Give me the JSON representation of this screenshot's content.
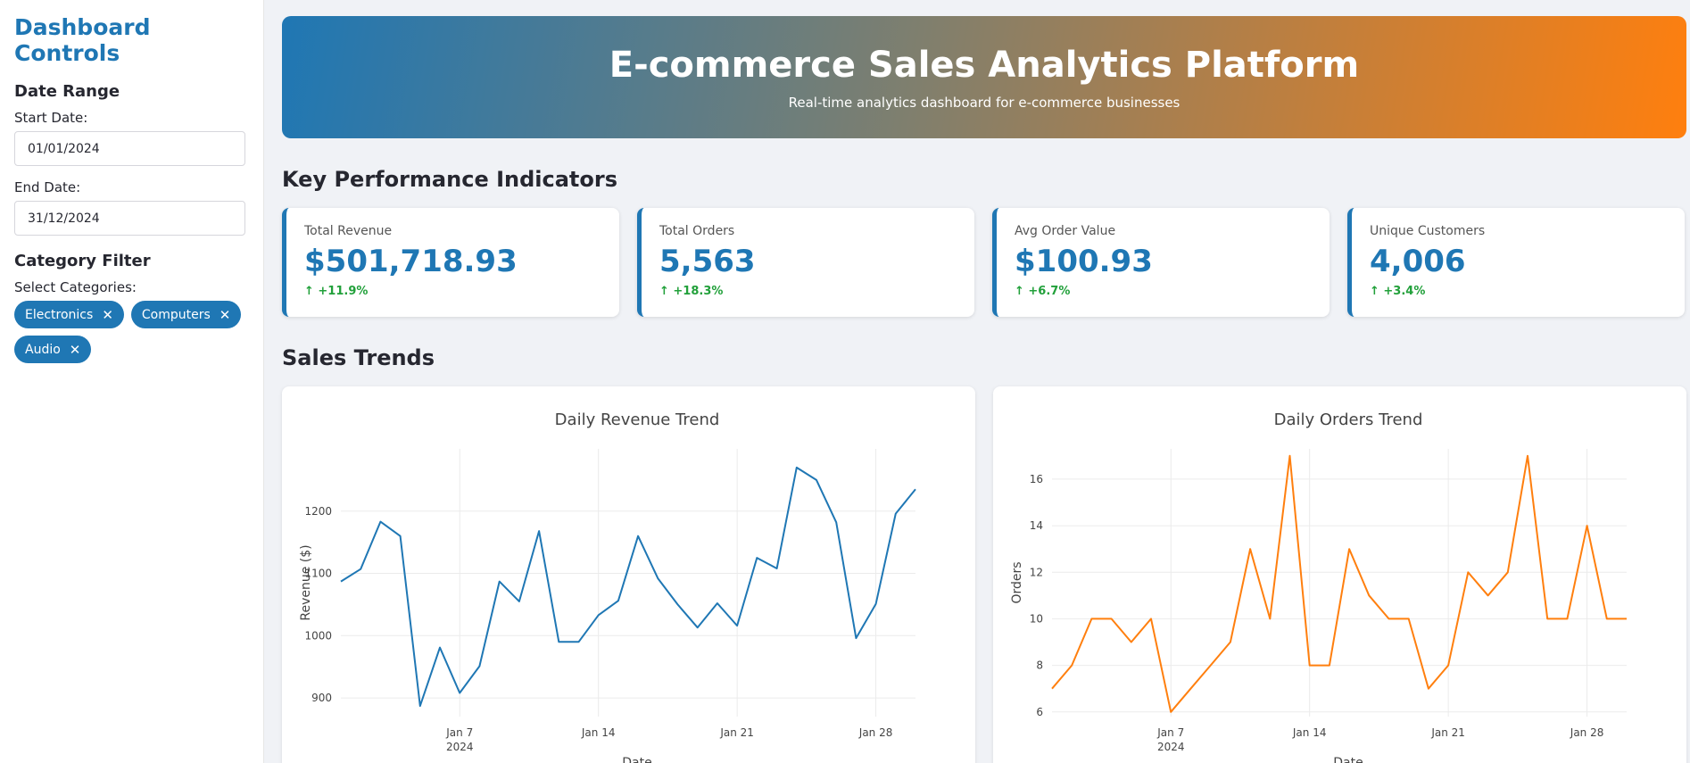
{
  "sidebar": {
    "title": "Dashboard Controls",
    "date_range": {
      "heading": "Date Range",
      "start_label": "Start Date:",
      "start_value": "01/01/2024",
      "end_label": "End Date:",
      "end_value": "31/12/2024"
    },
    "category_filter": {
      "heading": "Category Filter",
      "select_label": "Select Categories:",
      "chips": [
        "Electronics",
        "Computers",
        "Audio"
      ]
    }
  },
  "header": {
    "title": "E-commerce Sales Analytics Platform",
    "subtitle": "Real-time analytics dashboard for e-commerce businesses"
  },
  "kpi_section": {
    "heading": "Key Performance Indicators",
    "cards": [
      {
        "label": "Total Revenue",
        "value": "$501,718.93",
        "delta": "↑ +11.9%"
      },
      {
        "label": "Total Orders",
        "value": "5,563",
        "delta": "↑ +18.3%"
      },
      {
        "label": "Avg Order Value",
        "value": "$100.93",
        "delta": "↑ +6.7%"
      },
      {
        "label": "Unique Customers",
        "value": "4,006",
        "delta": "↑ +3.4%"
      }
    ]
  },
  "trends_section": {
    "heading": "Sales Trends"
  },
  "colors": {
    "accent": "#1f77b4",
    "orange": "#ff7f0e",
    "positive": "#21a03a"
  },
  "chart_data": [
    {
      "type": "line",
      "title": "Daily Revenue Trend",
      "xlabel": "Date",
      "ylabel": "Revenue ($)",
      "x_ticks": [
        "Jan 7",
        "Jan 14",
        "Jan 21",
        "Jan 28"
      ],
      "x_tick_sub": "2024",
      "x_range_days": [
        1,
        30
      ],
      "yticks": [
        900,
        1000,
        1100,
        1200
      ],
      "ylim": [
        870,
        1300
      ],
      "grid": true,
      "series": [
        {
          "color": "#1f77b4",
          "x": [
            1,
            2,
            3,
            4,
            5,
            6,
            7,
            8,
            9,
            10,
            11,
            12,
            13,
            14,
            15,
            16,
            17,
            18,
            19,
            20,
            21,
            22,
            23,
            24,
            25,
            26,
            27,
            28,
            29,
            30
          ],
          "y": [
            1087,
            1107,
            1183,
            1160,
            887,
            981,
            908,
            951,
            1087,
            1055,
            1168,
            990,
            990,
            1033,
            1056,
            1160,
            1092,
            1050,
            1013,
            1052,
            1016,
            1125,
            1108,
            1270,
            1250,
            1182,
            996,
            1051,
            1196,
            1235
          ]
        }
      ]
    },
    {
      "type": "line",
      "title": "Daily Orders Trend",
      "xlabel": "Date",
      "ylabel": "Orders",
      "x_ticks": [
        "Jan 7",
        "Jan 14",
        "Jan 21",
        "Jan 28"
      ],
      "x_tick_sub": "2024",
      "x_range_days": [
        1,
        30
      ],
      "yticks": [
        6,
        8,
        10,
        12,
        14,
        16
      ],
      "ylim": [
        5.8,
        17.3
      ],
      "grid": true,
      "series": [
        {
          "color": "#ff7f0e",
          "x": [
            1,
            2,
            3,
            4,
            5,
            6,
            7,
            8,
            9,
            10,
            11,
            12,
            13,
            14,
            15,
            16,
            17,
            18,
            19,
            20,
            21,
            22,
            23,
            24,
            25,
            26,
            27,
            28,
            29,
            30
          ],
          "y": [
            7,
            8,
            10,
            10,
            9,
            10,
            6,
            7,
            8,
            9,
            13,
            10,
            17,
            8,
            8,
            13,
            11,
            10,
            10,
            7,
            8,
            12,
            11,
            12,
            17,
            10,
            10,
            14,
            10,
            10
          ]
        }
      ]
    }
  ]
}
